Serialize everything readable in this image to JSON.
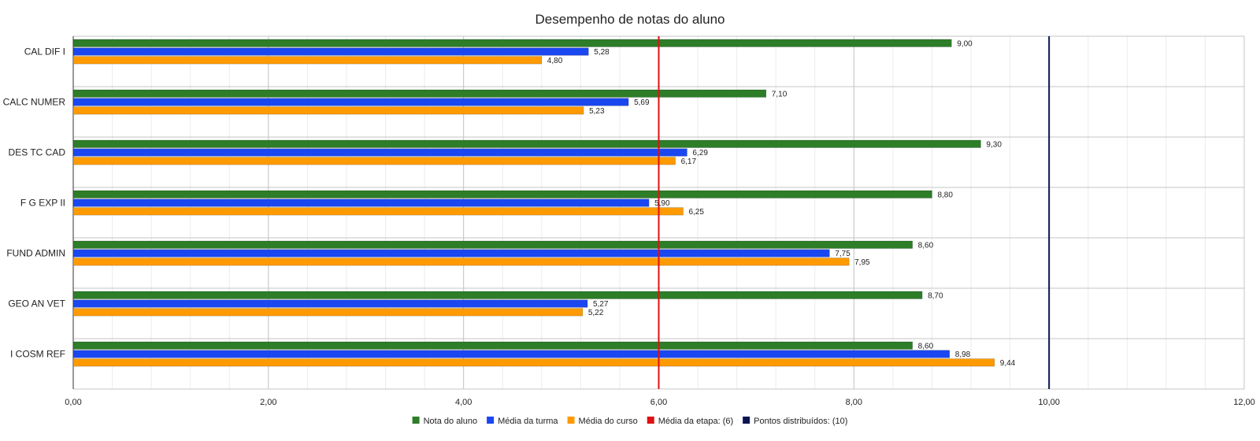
{
  "chart_data": {
    "type": "bar",
    "orientation": "horizontal",
    "title": "Desempenho de notas do aluno",
    "categories": [
      "CAL DIF I",
      "CALC NUMER",
      "DES TC CAD",
      "F G EXP II",
      "FUND ADMIN",
      "GEO AN VET",
      "I COSM REF"
    ],
    "series": [
      {
        "name": "Nota do aluno",
        "color": "#2e7d28",
        "values": [
          9.0,
          7.1,
          9.3,
          8.8,
          8.6,
          8.7,
          8.6
        ],
        "labels": [
          "9,00",
          "7,10",
          "9,30",
          "8,80",
          "8,60",
          "8,70",
          "8,60"
        ]
      },
      {
        "name": "Média da turma",
        "color": "#1a47f0",
        "values": [
          5.28,
          5.69,
          6.29,
          5.9,
          7.75,
          5.27,
          8.98
        ],
        "labels": [
          "5,28",
          "5,69",
          "6,29",
          "5,90",
          "7,75",
          "5,27",
          "8,98"
        ]
      },
      {
        "name": "Média do curso",
        "color": "#ff9a00",
        "values": [
          4.8,
          5.23,
          6.17,
          6.25,
          7.95,
          5.22,
          9.44
        ],
        "labels": [
          "4,80",
          "5,23",
          "6,17",
          "6,25",
          "7,95",
          "5,22",
          "9,44"
        ]
      }
    ],
    "reference_lines": [
      {
        "name": "Média da etapa: (6)",
        "value": 6,
        "color": "#e01010"
      },
      {
        "name": "Pontos distribuídos: (10)",
        "value": 10,
        "color": "#0a1550"
      }
    ],
    "xlim": [
      0,
      12
    ],
    "xticks": [
      0,
      2,
      4,
      6,
      8,
      10,
      12
    ],
    "xtick_labels": [
      "0,00",
      "2,00",
      "4,00",
      "6,00",
      "8,00",
      "10,00",
      "12,00"
    ],
    "legend": [
      {
        "name": "Nota do aluno",
        "color": "#2e7d28"
      },
      {
        "name": "Média da turma",
        "color": "#1a47f0"
      },
      {
        "name": "Média do curso",
        "color": "#ff9a00"
      },
      {
        "name": "Média da etapa: (6)",
        "color": "#e01010"
      },
      {
        "name": "Pontos distribuídos: (10)",
        "color": "#0a1550"
      }
    ],
    "legend_position": "bottom",
    "grid": true
  }
}
